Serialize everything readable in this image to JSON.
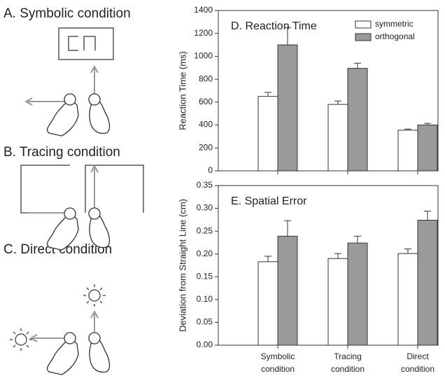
{
  "diagram_labels": [
    "A. Symbolic condition",
    "B. Tracing condition",
    "C. Direct condition"
  ],
  "chart_data": [
    {
      "type": "bar",
      "title": "D. Reaction Time",
      "ylabel": "Reaction Time (ms)",
      "categories": [
        null,
        null,
        null
      ],
      "series": [
        {
          "name": "symmetric",
          "color": "#ffffff",
          "values": [
            650,
            580,
            355
          ],
          "errors": [
            35,
            30,
            10
          ]
        },
        {
          "name": "orthogonal",
          "color": "#9a9a9a",
          "values": [
            1100,
            895,
            400
          ],
          "errors": [
            150,
            45,
            15
          ]
        }
      ],
      "ylim": [
        0,
        1400
      ],
      "yticks": [
        0,
        200,
        400,
        600,
        800,
        1000,
        1200,
        1400
      ],
      "legend": "upper right"
    },
    {
      "type": "bar",
      "title": "E. Spatial Error",
      "ylabel": "Deviation from Straight Line (cm)",
      "categories": [
        "Symbolic condition",
        "Tracing condition",
        "Direct condition"
      ],
      "series": [
        {
          "color": "#ffffff",
          "values": [
            0.183,
            0.19,
            0.201
          ],
          "errors": [
            0.012,
            0.011,
            0.01
          ]
        },
        {
          "color": "#9a9a9a",
          "values": [
            0.239,
            0.224,
            0.274
          ],
          "errors": [
            0.034,
            0.015,
            0.02
          ]
        }
      ],
      "ylim": [
        0,
        0.35
      ],
      "yticks": [
        {
          "value": 0,
          "label": "0.00"
        },
        0.05,
        {
          "value": 0.1,
          "label": "0.10"
        },
        0.15,
        {
          "value": 0.2,
          "label": "0.20"
        },
        0.25,
        {
          "value": 0.3,
          "label": "0.30"
        },
        0.35
      ]
    }
  ]
}
